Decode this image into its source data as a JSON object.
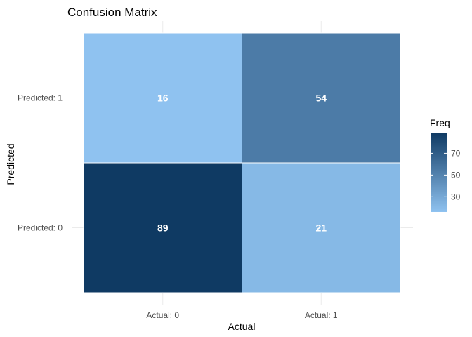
{
  "chart_data": {
    "type": "heatmap",
    "title": "Confusion Matrix",
    "xlabel": "Actual",
    "ylabel": "Predicted",
    "x_categories": [
      "Actual: 0",
      "Actual: 1"
    ],
    "y_categories": [
      "Predicted: 0",
      "Predicted: 1"
    ],
    "cells": [
      {
        "x": "Actual: 0",
        "y": "Predicted: 0",
        "value": 89
      },
      {
        "x": "Actual: 1",
        "y": "Predicted: 0",
        "value": 21
      },
      {
        "x": "Actual: 0",
        "y": "Predicted: 1",
        "value": 16
      },
      {
        "x": "Actual: 1",
        "y": "Predicted: 1",
        "value": 54
      }
    ],
    "color_scale": {
      "low": "#8fc2f0",
      "high": "#0f3a63",
      "min": 16,
      "max": 89
    },
    "legend": {
      "title": "Freq",
      "ticks": [
        30,
        50,
        70
      ],
      "placement": "right"
    },
    "grid": true
  }
}
